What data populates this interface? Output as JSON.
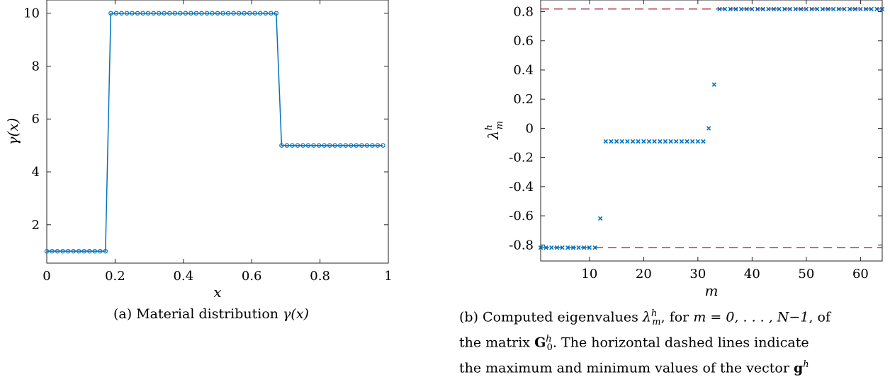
{
  "chart_data": [
    {
      "type": "line",
      "xlabel": "x",
      "ylabel": "γ(x)",
      "xlim": [
        0,
        1
      ],
      "ylim": [
        0.55,
        10.5
      ],
      "xticks": [
        0,
        0.2,
        0.4,
        0.6,
        0.8,
        1
      ],
      "xtick_labels": [
        "0",
        "0.2",
        "0.4",
        "0.6",
        "0.8",
        "1"
      ],
      "yticks": [
        2,
        4,
        6,
        8,
        10
      ],
      "ytick_labels": [
        "2",
        "4",
        "6",
        "8",
        "10"
      ],
      "grid": false,
      "color": "#0072BD",
      "markers": "open-circle",
      "segments": [
        {
          "x_start": 0.0,
          "x_end": 0.171875,
          "value": 1,
          "points": 12
        },
        {
          "x_start": 0.1875,
          "x_end": 0.671875,
          "value": 10,
          "points": 32
        },
        {
          "x_start": 0.6875,
          "x_end": 0.984375,
          "value": 5,
          "points": 20
        }
      ]
    },
    {
      "type": "scatter",
      "xlabel": "m",
      "ylabel": "λ",
      "ylabel_sup": "h",
      "ylabel_sub": "m",
      "xlim": [
        1,
        64
      ],
      "ylim": [
        -0.91,
        0.88
      ],
      "xticks": [
        10,
        20,
        30,
        40,
        50,
        60
      ],
      "xtick_labels": [
        "10",
        "20",
        "30",
        "40",
        "50",
        "60"
      ],
      "yticks": [
        -0.8,
        -0.6,
        -0.4,
        -0.2,
        0,
        0.2,
        0.4,
        0.6,
        0.8
      ],
      "ytick_labels": [
        "-0.8",
        "-0.6",
        "-0.4",
        "-0.2",
        "0",
        "0.2",
        "0.4",
        "0.6",
        "0.8"
      ],
      "grid": false,
      "color": "#0072BD",
      "markers": "x",
      "groups": [
        {
          "m_start": 1,
          "m_end": 11,
          "value": -0.818
        },
        {
          "m_start": 12,
          "m_end": 12,
          "value": -0.618
        },
        {
          "m_start": 13,
          "m_end": 31,
          "value": -0.09
        },
        {
          "m_start": 32,
          "m_end": 32,
          "value": 0.0
        },
        {
          "m_start": 33,
          "m_end": 33,
          "value": 0.3
        },
        {
          "m_start": 34,
          "m_end": 64,
          "value": 0.818
        }
      ],
      "reference_lines": [
        {
          "value": 0.818,
          "style": "dashed",
          "color": "#A2142F"
        },
        {
          "value": -0.818,
          "style": "dashed",
          "color": "#A2142F"
        }
      ]
    }
  ],
  "captions": {
    "a_pre": "(a) Material distribution ",
    "a_math": "γ(x)",
    "b_l1_pre": "(b) Computed eigenvalues ",
    "b_lambda": "λ",
    "b_sup": "h",
    "b_sub": "m",
    "b_l1_mid": ", for ",
    "b_l1_math": "m = 0, . . . , N−1",
    "b_l1_end": ", of",
    "b_l2_pre": "the matrix ",
    "b_l2_G": "G",
    "b_l2_sup": "h",
    "b_l2_sub": "0",
    "b_l2_end": ". The horizontal dashed lines indicate",
    "b_l3_pre": "the maximum and minimum values of the vector ",
    "b_l3_g": "g",
    "b_l3_sup": "h"
  }
}
